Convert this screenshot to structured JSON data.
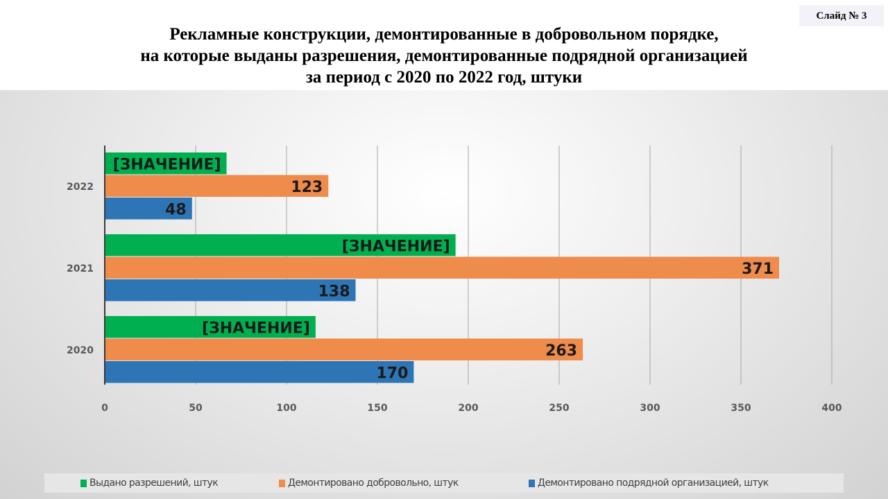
{
  "slide_label": "Слайд № 3",
  "colors": {
    "green": "#00b050",
    "orange": "#ef8b4b",
    "blue": "#2e75b6"
  },
  "chart_data": {
    "type": "bar",
    "orientation": "horizontal",
    "title": [
      "Рекламные конструкции, демонтированные в добровольном порядке,",
      "на которые выданы разрешения, демонтированные подрядной организацией",
      "за период с 2020 по 2022 год, штуки"
    ],
    "categories": [
      "2022",
      "2021",
      "2020"
    ],
    "xlim": [
      0,
      400
    ],
    "xticks": [
      "0",
      "50",
      "100",
      "150",
      "200",
      "250",
      "300",
      "350",
      "400"
    ],
    "grid": true,
    "legend_position": "bottom",
    "series": [
      {
        "name": "Выдано разрешений, штук",
        "values": [
          67,
          193,
          116
        ],
        "labels": [
          "[ЗНАЧЕНИЕ]",
          "[ЗНАЧЕНИЕ]",
          "[ЗНАЧЕНИЕ]"
        ],
        "color": "#00b050"
      },
      {
        "name": "Демонтировано добровольно, штук",
        "values": [
          123,
          371,
          263
        ],
        "labels": [
          "123",
          "371",
          "263"
        ],
        "color": "#ef8b4b"
      },
      {
        "name": "Демонтировано подрядной организацией, штук",
        "values": [
          48,
          138,
          170
        ],
        "labels": [
          "48",
          "138",
          "170"
        ],
        "color": "#2e75b6"
      }
    ]
  }
}
